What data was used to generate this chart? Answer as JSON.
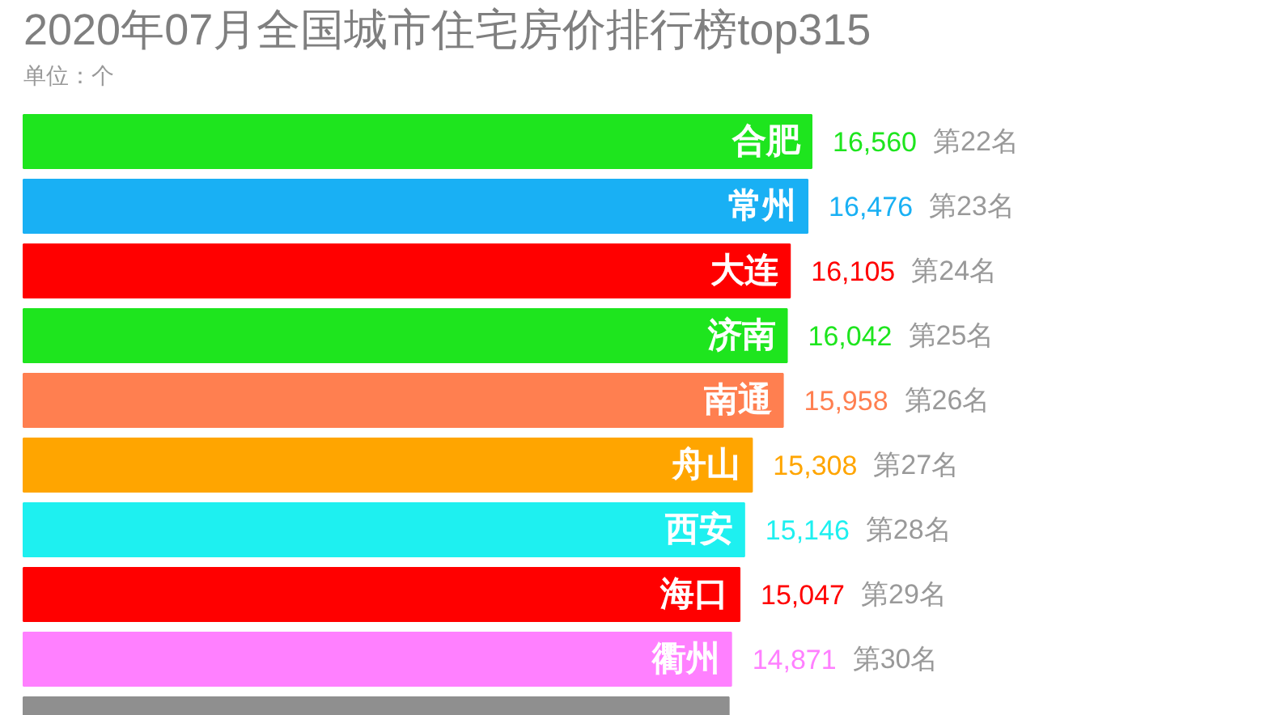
{
  "chart_data": {
    "type": "bar",
    "orientation": "horizontal",
    "title": "2020年07月全国城市住宅房价排行榜top315",
    "subtitle": "单位：个",
    "categories": [
      "合肥",
      "常州",
      "大连",
      "济南",
      "南通",
      "舟山",
      "西安",
      "海口",
      "衢州",
      null
    ],
    "values": [
      16560,
      16476,
      16105,
      16042,
      15958,
      15308,
      15146,
      15047,
      14871,
      14820
    ],
    "value_labels": [
      "16,560",
      "16,476",
      "16,105",
      "16,042",
      "15,958",
      "15,308",
      "15,146",
      "15,047",
      "14,871",
      null
    ],
    "colors": [
      "#1ee51e",
      "#19b0f4",
      "#ff0000",
      "#1ee51e",
      "#ff7f50",
      "#ffa500",
      "#1ef0f0",
      "#ff0000",
      "#ff80ff",
      "#8f8f8f"
    ],
    "annotations": [
      "第22名",
      "第23名",
      "第24名",
      "第25名",
      "第26名",
      "第27名",
      "第28名",
      "第29名",
      "第30名"
    ]
  }
}
